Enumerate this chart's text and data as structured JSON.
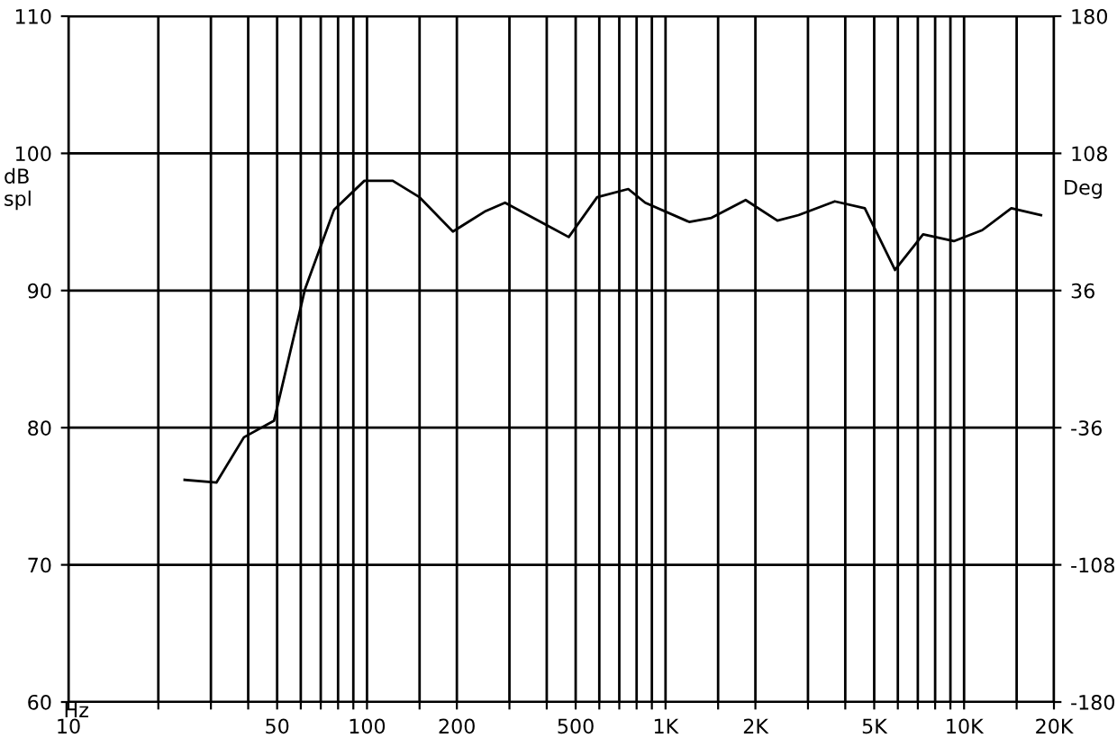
{
  "chart_data": {
    "type": "line",
    "xlabel": "Hz",
    "ylabel": "dB\nspl",
    "y2label": "Deg",
    "log": "x",
    "grid": true,
    "marker": "none",
    "line_style": "solid",
    "x": [
      24.5,
      31.3,
      38.7,
      48.8,
      62,
      77.6,
      98,
      122,
      150,
      194,
      250,
      290,
      474,
      590,
      750,
      855,
      1200,
      1425,
      1855,
      2370,
      2790,
      3690,
      4650,
      5870,
      7290,
      9240,
      11500,
      14400,
      18100
    ],
    "series": [
      {
        "color": "#000000",
        "values": [
          76.2,
          76.0,
          79.3,
          80.5,
          90.1,
          95.9,
          98.0,
          98.0,
          96.8,
          94.3,
          95.8,
          96.4,
          93.9,
          96.8,
          97.4,
          96.4,
          95.0,
          95.3,
          96.6,
          95.1,
          95.5,
          96.5,
          96.0,
          91.5,
          94.1,
          93.6,
          94.4,
          96.0,
          95.5
        ]
      }
    ],
    "xlim": [
      10,
      20000
    ],
    "xticks": [
      10,
      {
        "value": 20,
        "label": null
      },
      {
        "value": 30,
        "label": null
      },
      {
        "value": 40,
        "label": null
      },
      50,
      {
        "value": 60,
        "label": null
      },
      {
        "value": 70,
        "label": null
      },
      {
        "value": 80,
        "label": null
      },
      {
        "value": 90,
        "label": null
      },
      100,
      {
        "value": 150,
        "label": null
      },
      200,
      {
        "value": 300,
        "label": null
      },
      {
        "value": 400,
        "label": null
      },
      500,
      {
        "value": 600,
        "label": null
      },
      {
        "value": 700,
        "label": null
      },
      {
        "value": 800,
        "label": null
      },
      {
        "value": 900,
        "label": null
      },
      {
        "value": 1000,
        "label": "1K"
      },
      {
        "value": 1500,
        "label": null
      },
      {
        "value": 2000,
        "label": "2K"
      },
      {
        "value": 3000,
        "label": null
      },
      {
        "value": 4000,
        "label": null
      },
      {
        "value": 5000,
        "label": "5K"
      },
      {
        "value": 6000,
        "label": null
      },
      {
        "value": 7000,
        "label": null
      },
      {
        "value": 8000,
        "label": null
      },
      {
        "value": 9000,
        "label": null
      },
      {
        "value": 10000,
        "label": "10K"
      },
      {
        "value": 15000,
        "label": null
      },
      {
        "value": 20000,
        "label": "20K"
      }
    ],
    "ylim": [
      60,
      110
    ],
    "yticks": [
      60,
      70,
      80,
      90,
      100,
      110
    ],
    "y2lim": [
      -180,
      180
    ],
    "y2ticks": [
      -180,
      -108,
      -36,
      36,
      108,
      180
    ]
  }
}
